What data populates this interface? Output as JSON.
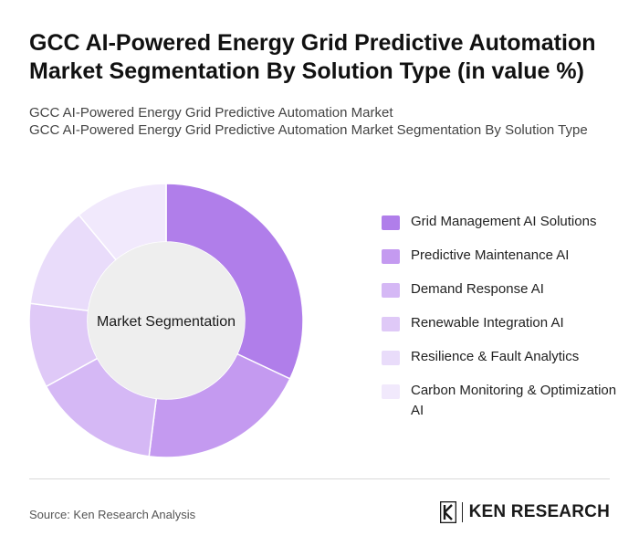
{
  "title": "GCC AI-Powered Energy Grid Predictive Automation Market Segmentation By Solution Type (in value %)",
  "subtitle_lines": [
    "GCC AI-Powered Energy Grid Predictive Automation Market",
    "GCC AI-Powered Energy Grid Predictive Automation Market Segmentation By Solution Type"
  ],
  "source": "Source: Ken Research Analysis",
  "brand": {
    "name": "KEN RESEARCH",
    "logo_letter": "K"
  },
  "chart_data": {
    "type": "pie",
    "variant": "donut",
    "center_label": "Market Segmentation",
    "categories": [
      "Grid Management AI Solutions",
      "Predictive Maintenance AI",
      "Demand Response AI",
      "Renewable Integration AI",
      "Resilience & Fault Analytics",
      "Carbon Monitoring & Optimization AI"
    ],
    "values": [
      32,
      20,
      15,
      10,
      12,
      11
    ],
    "colors": [
      "#b07eea",
      "#c49af0",
      "#d5b8f5",
      "#dfc9f7",
      "#e9dcfa",
      "#f1e9fc"
    ],
    "legend_position": "right"
  }
}
